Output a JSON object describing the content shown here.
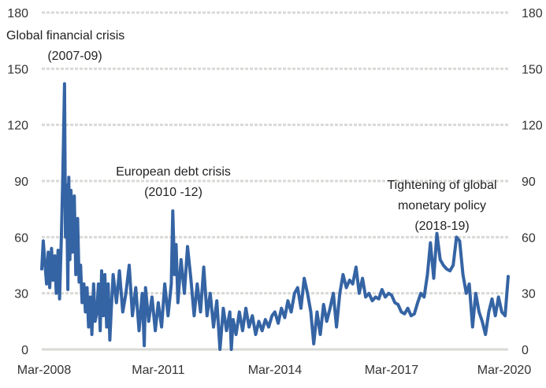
{
  "chart_data": {
    "type": "line",
    "title": "",
    "xlabel": "",
    "ylabel": "",
    "ylim": [
      0,
      180
    ],
    "yticks": [
      "0",
      "30",
      "60",
      "90",
      "120",
      "150",
      "180"
    ],
    "xticks": [
      "Mar-2008",
      "Mar-2011",
      "Mar-2014",
      "Mar-2017",
      "Mar-2020"
    ],
    "xrange": [
      "2008-03-01",
      "2020-03-01"
    ],
    "grid": true,
    "axes": "left-and-right",
    "line_color": "#3564a4",
    "annotations": [
      {
        "lines": [
          "Global financial crisis",
          "(2007-09)"
        ]
      },
      {
        "lines": [
          "European debt crisis",
          "(2010 -12)"
        ]
      },
      {
        "lines": [
          "Tightening of global",
          "monetary policy",
          "(2018-19)"
        ]
      }
    ],
    "series": [
      {
        "points": [
          [
            "2008-03-01",
            43
          ],
          [
            "2008-03-15",
            58
          ],
          [
            "2008-04-01",
            45
          ],
          [
            "2008-04-15",
            35
          ],
          [
            "2008-05-01",
            52
          ],
          [
            "2008-05-15",
            33
          ],
          [
            "2008-06-01",
            54
          ],
          [
            "2008-06-15",
            37
          ],
          [
            "2008-07-01",
            50
          ],
          [
            "2008-07-15",
            30
          ],
          [
            "2008-08-01",
            53
          ],
          [
            "2008-08-15",
            27
          ],
          [
            "2008-09-01",
            60
          ],
          [
            "2008-09-15",
            92
          ],
          [
            "2008-10-01",
            142
          ],
          [
            "2008-10-10",
            60
          ],
          [
            "2008-10-20",
            88
          ],
          [
            "2008-11-01",
            32
          ],
          [
            "2008-11-10",
            92
          ],
          [
            "2008-11-20",
            48
          ],
          [
            "2008-12-01",
            85
          ],
          [
            "2008-12-15",
            52
          ],
          [
            "2009-01-01",
            82
          ],
          [
            "2009-01-15",
            40
          ],
          [
            "2009-02-01",
            70
          ],
          [
            "2009-02-15",
            36
          ],
          [
            "2009-03-01",
            45
          ],
          [
            "2009-03-15",
            25
          ],
          [
            "2009-04-01",
            35
          ],
          [
            "2009-04-15",
            20
          ],
          [
            "2009-05-01",
            33
          ],
          [
            "2009-05-15",
            12
          ],
          [
            "2009-06-01",
            28
          ],
          [
            "2009-06-15",
            8
          ],
          [
            "2009-07-01",
            35
          ],
          [
            "2009-07-15",
            15
          ],
          [
            "2009-08-01",
            20
          ],
          [
            "2009-08-15",
            35
          ],
          [
            "2009-09-01",
            10
          ],
          [
            "2009-09-15",
            42
          ],
          [
            "2009-10-01",
            18
          ],
          [
            "2009-10-15",
            40
          ],
          [
            "2009-11-01",
            12
          ],
          [
            "2009-11-15",
            35
          ],
          [
            "2009-12-01",
            5
          ],
          [
            "2009-12-15",
            22
          ],
          [
            "2010-01-01",
            40
          ],
          [
            "2010-02-01",
            25
          ],
          [
            "2010-03-01",
            42
          ],
          [
            "2010-04-01",
            20
          ],
          [
            "2010-05-01",
            30
          ],
          [
            "2010-06-01",
            45
          ],
          [
            "2010-07-01",
            18
          ],
          [
            "2010-08-01",
            33
          ],
          [
            "2010-09-01",
            10
          ],
          [
            "2010-10-01",
            30
          ],
          [
            "2010-10-20",
            2
          ],
          [
            "2010-11-01",
            33
          ],
          [
            "2010-12-01",
            15
          ],
          [
            "2011-01-01",
            28
          ],
          [
            "2011-02-01",
            10
          ],
          [
            "2011-03-01",
            25
          ],
          [
            "2011-04-01",
            12
          ],
          [
            "2011-05-01",
            35
          ],
          [
            "2011-06-01",
            18
          ],
          [
            "2011-07-01",
            35
          ],
          [
            "2011-07-15",
            74
          ],
          [
            "2011-08-01",
            40
          ],
          [
            "2011-08-15",
            56
          ],
          [
            "2011-09-01",
            25
          ],
          [
            "2011-10-01",
            48
          ],
          [
            "2011-11-01",
            30
          ],
          [
            "2011-12-01",
            55
          ],
          [
            "2012-01-01",
            38
          ],
          [
            "2012-02-01",
            18
          ],
          [
            "2012-03-01",
            35
          ],
          [
            "2012-04-01",
            20
          ],
          [
            "2012-05-01",
            44
          ],
          [
            "2012-06-01",
            18
          ],
          [
            "2012-07-01",
            30
          ],
          [
            "2012-08-01",
            12
          ],
          [
            "2012-09-01",
            26
          ],
          [
            "2012-10-01",
            0
          ],
          [
            "2012-11-01",
            22
          ],
          [
            "2012-12-01",
            10
          ],
          [
            "2013-01-01",
            20
          ],
          [
            "2013-01-15",
            0
          ],
          [
            "2013-02-01",
            16
          ],
          [
            "2013-03-01",
            8
          ],
          [
            "2013-04-01",
            20
          ],
          [
            "2013-05-01",
            10
          ],
          [
            "2013-06-01",
            22
          ],
          [
            "2013-07-01",
            12
          ],
          [
            "2013-08-01",
            18
          ],
          [
            "2013-09-01",
            8
          ],
          [
            "2013-10-01",
            15
          ],
          [
            "2013-11-01",
            10
          ],
          [
            "2013-12-01",
            16
          ],
          [
            "2014-01-01",
            12
          ],
          [
            "2014-02-01",
            18
          ],
          [
            "2014-03-01",
            20
          ],
          [
            "2014-04-01",
            14
          ],
          [
            "2014-05-01",
            22
          ],
          [
            "2014-06-01",
            17
          ],
          [
            "2014-07-01",
            26
          ],
          [
            "2014-08-01",
            20
          ],
          [
            "2014-09-01",
            30
          ],
          [
            "2014-10-01",
            33
          ],
          [
            "2014-11-01",
            22
          ],
          [
            "2014-12-01",
            38
          ],
          [
            "2015-01-01",
            30
          ],
          [
            "2015-02-01",
            20
          ],
          [
            "2015-03-01",
            3
          ],
          [
            "2015-04-01",
            20
          ],
          [
            "2015-05-01",
            8
          ],
          [
            "2015-06-01",
            24
          ],
          [
            "2015-07-01",
            15
          ],
          [
            "2015-08-01",
            22
          ],
          [
            "2015-09-01",
            30
          ],
          [
            "2015-10-01",
            12
          ],
          [
            "2015-11-01",
            30
          ],
          [
            "2015-12-01",
            40
          ],
          [
            "2016-01-01",
            33
          ],
          [
            "2016-02-01",
            37
          ],
          [
            "2016-03-01",
            35
          ],
          [
            "2016-04-01",
            44
          ],
          [
            "2016-05-01",
            30
          ],
          [
            "2016-06-01",
            38
          ],
          [
            "2016-07-01",
            28
          ],
          [
            "2016-08-01",
            30
          ],
          [
            "2016-09-01",
            26
          ],
          [
            "2016-10-01",
            28
          ],
          [
            "2016-11-01",
            27
          ],
          [
            "2016-12-01",
            32
          ],
          [
            "2017-01-01",
            28
          ],
          [
            "2017-02-01",
            30
          ],
          [
            "2017-03-01",
            29
          ],
          [
            "2017-04-01",
            25
          ],
          [
            "2017-05-01",
            24
          ],
          [
            "2017-06-01",
            20
          ],
          [
            "2017-07-01",
            19
          ],
          [
            "2017-08-01",
            22
          ],
          [
            "2017-09-01",
            18
          ],
          [
            "2017-10-01",
            19
          ],
          [
            "2017-11-01",
            25
          ],
          [
            "2017-12-01",
            30
          ],
          [
            "2018-01-01",
            28
          ],
          [
            "2018-02-01",
            40
          ],
          [
            "2018-03-01",
            57
          ],
          [
            "2018-04-01",
            38
          ],
          [
            "2018-05-01",
            62
          ],
          [
            "2018-06-01",
            48
          ],
          [
            "2018-07-01",
            45
          ],
          [
            "2018-08-01",
            43
          ],
          [
            "2018-09-01",
            42
          ],
          [
            "2018-10-01",
            45
          ],
          [
            "2018-11-01",
            60
          ],
          [
            "2018-12-01",
            58
          ],
          [
            "2019-01-01",
            40
          ],
          [
            "2019-02-01",
            30
          ],
          [
            "2019-03-01",
            35
          ],
          [
            "2019-04-01",
            12
          ],
          [
            "2019-05-01",
            30
          ],
          [
            "2019-06-01",
            20
          ],
          [
            "2019-07-01",
            15
          ],
          [
            "2019-08-01",
            8
          ],
          [
            "2019-09-01",
            20
          ],
          [
            "2019-10-01",
            27
          ],
          [
            "2019-11-01",
            18
          ],
          [
            "2019-12-01",
            28
          ],
          [
            "2020-01-01",
            20
          ],
          [
            "2020-02-01",
            18
          ],
          [
            "2020-03-01",
            39
          ]
        ]
      }
    ]
  }
}
